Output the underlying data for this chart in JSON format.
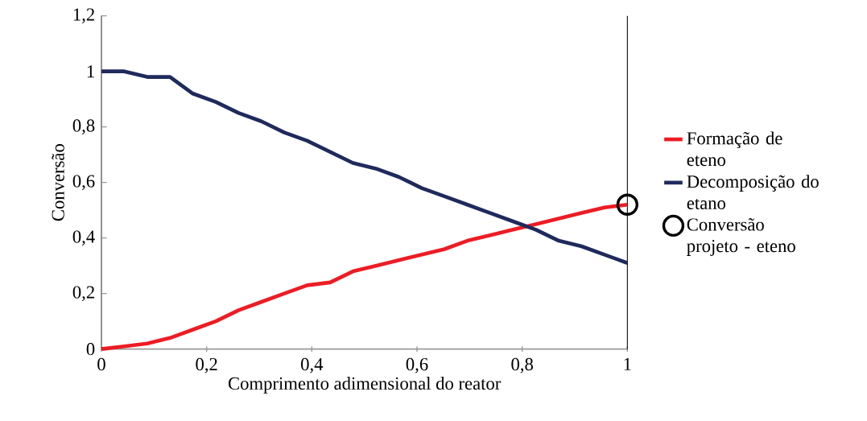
{
  "chart_data": {
    "type": "line",
    "xlabel": "Comprimento  adimensional  do reator",
    "ylabel": "Conversão",
    "xlim": [
      0,
      1
    ],
    "ylim": [
      0,
      1.2
    ],
    "xticks": [
      0,
      {
        "value": 0.2,
        "label": "0,2"
      },
      {
        "value": 0.4,
        "label": "0,4"
      },
      {
        "value": 0.6,
        "label": "0,6"
      },
      {
        "value": 0.8,
        "label": "0,8"
      },
      1
    ],
    "yticks": [
      0,
      {
        "value": 0.2,
        "label": "0,2"
      },
      {
        "value": 0.4,
        "label": "0,4"
      },
      {
        "value": 0.6,
        "label": "0,6"
      },
      {
        "value": 0.8,
        "label": "0,8"
      },
      1,
      {
        "value": 1.2,
        "label": "1,2"
      }
    ],
    "x": [
      0,
      0.0435,
      0.087,
      0.1304,
      0.1739,
      0.2174,
      0.2609,
      0.3043,
      0.3478,
      0.3913,
      0.4348,
      0.4783,
      0.5217,
      0.5652,
      0.6087,
      0.6522,
      0.6957,
      0.7391,
      0.7826,
      0.8261,
      0.8696,
      0.913,
      0.9565,
      1
    ],
    "series": [
      {
        "name": "Formação de eteno",
        "color": "#ed1c24",
        "values": [
          0.0,
          0.01,
          0.02,
          0.04,
          0.07,
          0.1,
          0.14,
          0.17,
          0.2,
          0.23,
          0.24,
          0.28,
          0.3,
          0.32,
          0.34,
          0.36,
          0.39,
          0.41,
          0.43,
          0.45,
          0.47,
          0.49,
          0.51,
          0.52
        ]
      },
      {
        "name": "Decomposição do etano",
        "color": "#1f2a5c",
        "values": [
          1.0,
          1.0,
          0.98,
          0.98,
          0.92,
          0.89,
          0.85,
          0.82,
          0.78,
          0.75,
          0.71,
          0.67,
          0.65,
          0.62,
          0.58,
          0.55,
          0.52,
          0.49,
          0.46,
          0.43,
          0.39,
          0.37,
          0.34,
          0.31
        ]
      },
      {
        "name": "Conversão projeto - eteno",
        "type": "scatter",
        "marker": "circle",
        "color": "#000000",
        "x": [
          1
        ],
        "values": [
          0.52
        ]
      }
    ],
    "legend": "right"
  }
}
